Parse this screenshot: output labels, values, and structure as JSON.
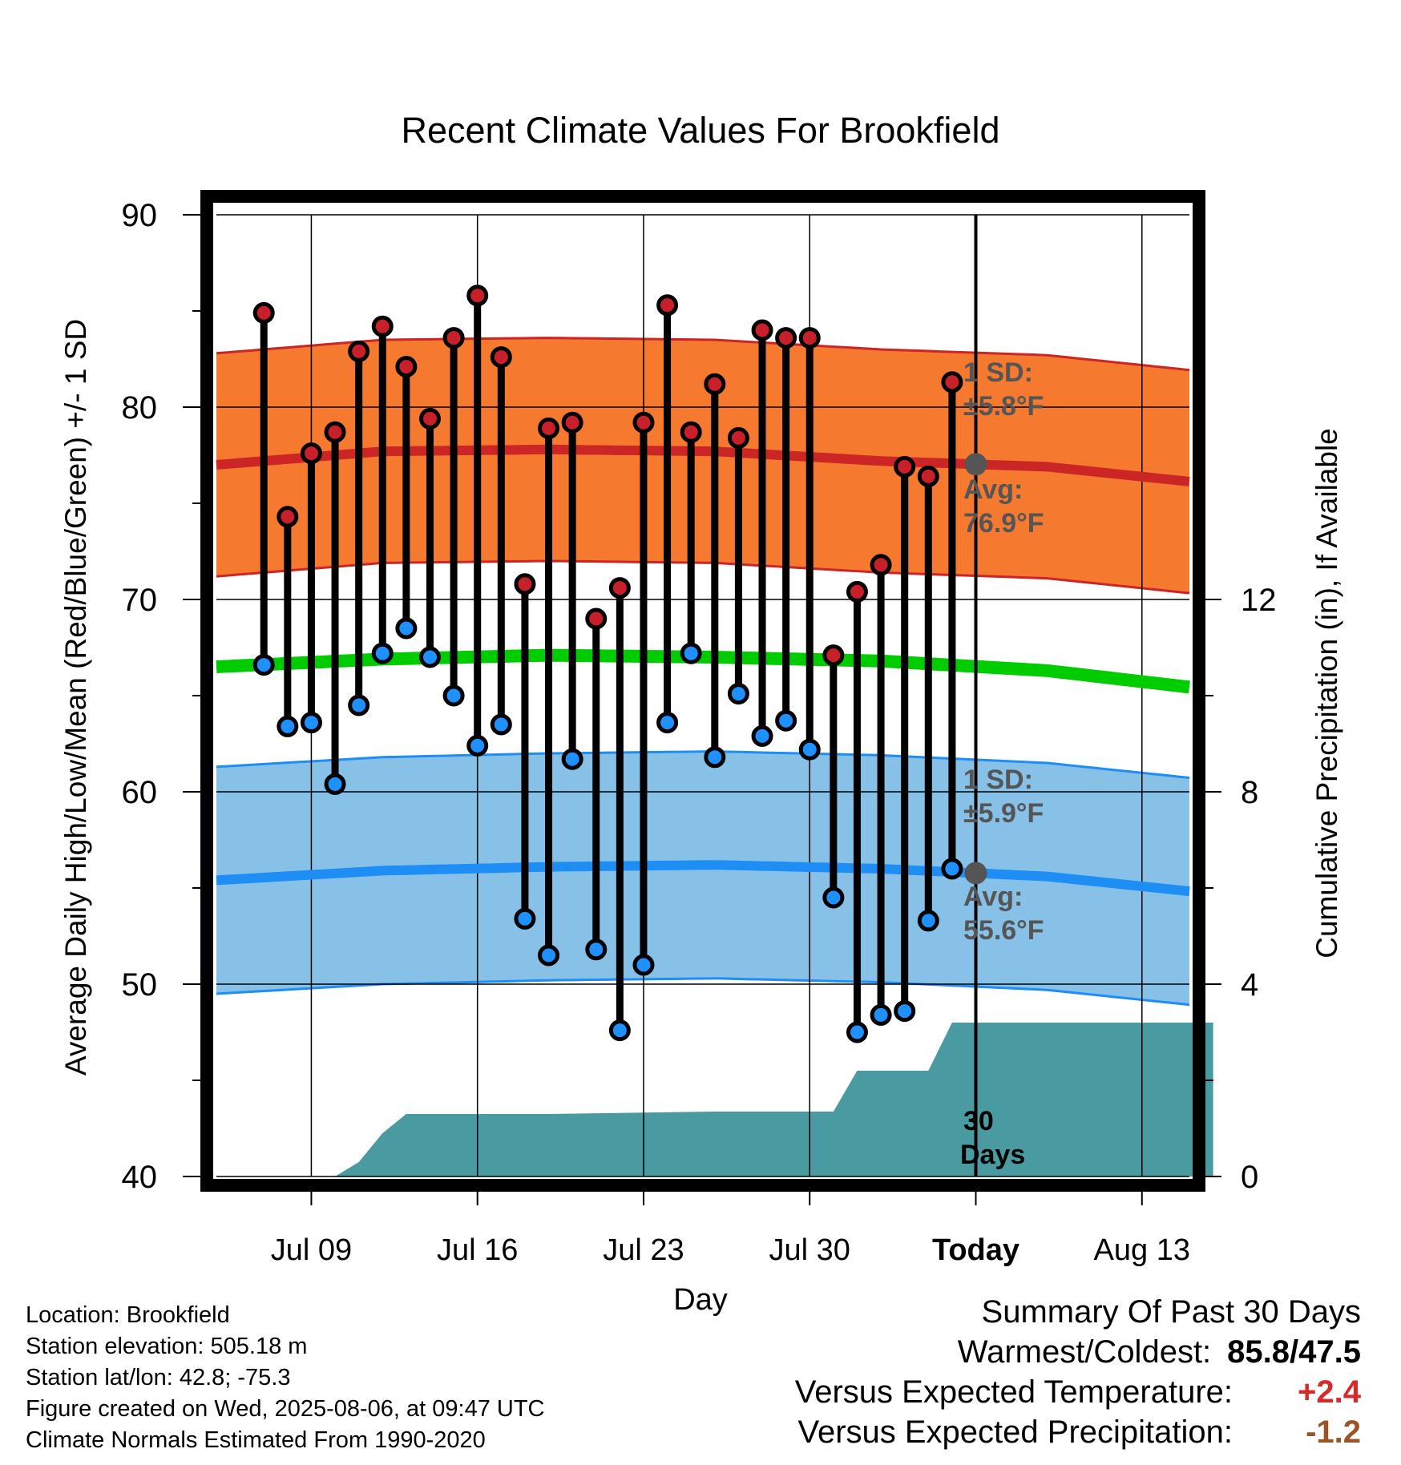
{
  "chart_data": {
    "type": "line",
    "title": "Recent Climate Values For Brookfield",
    "xlabel": "Day",
    "ylabel": "Average Daily High/Low/Mean (Red/Blue/Green) +/- 1 SD",
    "y2label": "Cumulative Precipitation (in), If Available",
    "ylim": [
      40,
      90
    ],
    "y2lim": [
      0,
      20
    ],
    "yticks": [
      "90",
      "80",
      "70",
      "60",
      "50",
      "40"
    ],
    "y2ticks": [
      "12",
      "8",
      "4",
      "0"
    ],
    "xticks": [
      "Jul 09",
      "Jul 16",
      "Jul 23",
      "Jul 30",
      "Today",
      "Aug 13"
    ],
    "x_range": [
      "2025-07-05",
      "2025-08-15"
    ],
    "today": "2025-08-06",
    "days": [
      "2025-07-07",
      "2025-07-08",
      "2025-07-09",
      "2025-07-10",
      "2025-07-11",
      "2025-07-12",
      "2025-07-13",
      "2025-07-14",
      "2025-07-15",
      "2025-07-16",
      "2025-07-17",
      "2025-07-18",
      "2025-07-19",
      "2025-07-20",
      "2025-07-21",
      "2025-07-22",
      "2025-07-23",
      "2025-07-24",
      "2025-07-25",
      "2025-07-26",
      "2025-07-27",
      "2025-07-28",
      "2025-07-29",
      "2025-07-30",
      "2025-07-31",
      "2025-08-01",
      "2025-08-02",
      "2025-08-03",
      "2025-08-04",
      "2025-08-05"
    ],
    "series": [
      {
        "name": "High",
        "color": "#c8202a",
        "values": [
          84.9,
          74.3,
          77.6,
          78.7,
          82.9,
          84.2,
          82.1,
          79.4,
          83.6,
          85.8,
          82.6,
          70.8,
          78.9,
          79.2,
          69.0,
          70.6,
          79.2,
          85.3,
          78.7,
          81.2,
          78.4,
          84.0,
          83.6,
          83.6,
          67.1,
          70.4,
          71.8,
          76.9,
          76.4,
          81.3
        ]
      },
      {
        "name": "Low",
        "color": "#1e90ff",
        "values": [
          66.6,
          63.4,
          63.6,
          60.4,
          64.5,
          67.2,
          68.5,
          67.0,
          65.0,
          62.4,
          63.5,
          53.4,
          51.5,
          61.7,
          51.8,
          47.6,
          51.0,
          63.6,
          67.2,
          61.8,
          65.1,
          62.9,
          63.7,
          62.2,
          54.5,
          47.5,
          48.4,
          48.6,
          53.3,
          56.0
        ]
      }
    ],
    "normal_high_avg": [
      [
        0,
        77.0
      ],
      [
        7,
        77.7
      ],
      [
        14,
        77.8
      ],
      [
        21,
        77.7
      ],
      [
        28,
        77.2
      ],
      [
        35,
        76.9
      ],
      [
        42,
        76.0
      ]
    ],
    "normal_high_sd": 5.8,
    "normal_low_avg": [
      [
        0,
        55.4
      ],
      [
        7,
        55.9
      ],
      [
        14,
        56.1
      ],
      [
        21,
        56.2
      ],
      [
        28,
        56.0
      ],
      [
        35,
        55.6
      ],
      [
        42,
        54.7
      ]
    ],
    "normal_low_sd": 5.9,
    "normal_mean": [
      [
        0,
        66.5
      ],
      [
        7,
        66.9
      ],
      [
        14,
        67.1
      ],
      [
        21,
        67.0
      ],
      [
        28,
        66.8
      ],
      [
        35,
        66.3
      ],
      [
        42,
        65.3
      ]
    ],
    "precip_cumulative": [
      [
        0,
        0
      ],
      [
        5,
        0
      ],
      [
        6,
        0.3
      ],
      [
        7,
        0.9
      ],
      [
        8,
        1.3
      ],
      [
        14,
        1.3
      ],
      [
        21,
        1.35
      ],
      [
        26,
        1.35
      ],
      [
        27,
        2.2
      ],
      [
        30,
        2.2
      ],
      [
        31,
        3.2
      ],
      [
        42,
        3.2
      ]
    ],
    "colors": {
      "high_band": "#f5792e",
      "high_line": "#cc2525",
      "low_band": "#87c1e8",
      "low_line": "#1e8ef5",
      "mean_line": "#00cc00",
      "precip": "#4a9aa2",
      "marker_text": "#555555"
    },
    "annotations": {
      "high_sd_label": "1 SD:",
      "high_sd_value": "±5.8°F",
      "high_avg_label": "Avg:",
      "high_avg_value": "76.9°F",
      "low_sd_label": "1 SD:",
      "low_sd_value": "±5.9°F",
      "low_avg_label": "Avg:",
      "low_avg_value": "55.6°F",
      "days_label_1": "30",
      "days_label_2": "Days"
    }
  },
  "footer": {
    "location": "Location: Brookfield",
    "elevation": "Station elevation: 505.18 m",
    "latlon": "Station lat/lon: 42.8; -75.3",
    "created": "Figure created on Wed, 2025-08-06, at 09:47 UTC",
    "normals": "Climate Normals Estimated From 1990-2020"
  },
  "summary": {
    "heading": "Summary Of Past 30 Days",
    "warm_label": "Warmest/Coldest:",
    "warm_value": "85.8/47.5",
    "temp_label": "Versus Expected Temperature:",
    "temp_value": "+2.4",
    "prec_label": "Versus Expected Precipitation:",
    "prec_value": "-1.2"
  }
}
